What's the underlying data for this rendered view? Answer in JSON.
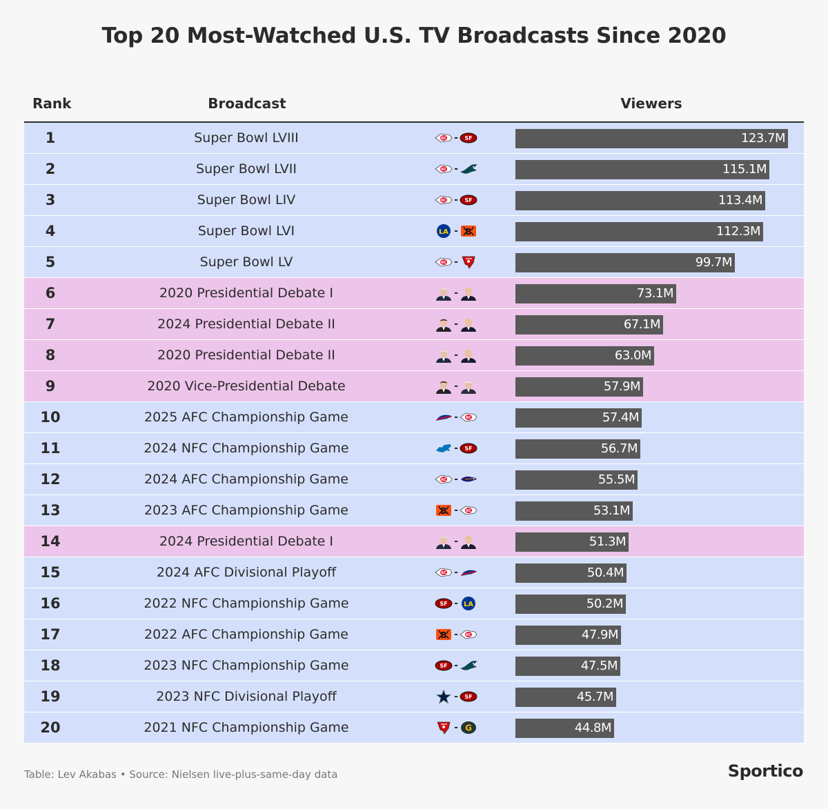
{
  "title": "Top 20 Most-Watched U.S. TV Broadcasts Since 2020",
  "headers": {
    "rank": "Rank",
    "broadcast": "Broadcast",
    "viewers": "Viewers"
  },
  "colors": {
    "nfl_row": "#d4e0fb",
    "politics_row": "#edc4ea",
    "bar": "#595959"
  },
  "footer": {
    "note": "Table: Lev Akabas • Source: Nielsen live-plus-same-day data",
    "brand": "Sportico"
  },
  "chart_data": {
    "type": "bar",
    "orientation": "horizontal",
    "xlim": [
      0,
      123.7
    ],
    "value_unit": "M",
    "rows": [
      {
        "rank": "1",
        "name": "Super Bowl LVIII",
        "value": 123.7,
        "label": "123.7M",
        "category": "nfl",
        "logos": [
          "chiefs-logo",
          "49ers-logo"
        ]
      },
      {
        "rank": "2",
        "name": "Super Bowl LVII",
        "value": 115.1,
        "label": "115.1M",
        "category": "nfl",
        "logos": [
          "chiefs-logo",
          "eagles-logo"
        ]
      },
      {
        "rank": "3",
        "name": "Super Bowl LIV",
        "value": 113.4,
        "label": "113.4M",
        "category": "nfl",
        "logos": [
          "chiefs-logo",
          "49ers-logo"
        ]
      },
      {
        "rank": "4",
        "name": "Super Bowl LVI",
        "value": 112.3,
        "label": "112.3M",
        "category": "nfl",
        "logos": [
          "rams-logo",
          "bengals-logo"
        ]
      },
      {
        "rank": "5",
        "name": "Super Bowl LV",
        "value": 99.7,
        "label": "99.7M",
        "category": "nfl",
        "logos": [
          "chiefs-logo",
          "buccaneers-logo"
        ]
      },
      {
        "rank": "6",
        "name": "2020 Presidential Debate I",
        "value": 73.1,
        "label": "73.1M",
        "category": "politics",
        "logos": [
          "biden-portrait",
          "trump-portrait"
        ]
      },
      {
        "rank": "7",
        "name": "2024 Presidential Debate II",
        "value": 67.1,
        "label": "67.1M",
        "category": "politics",
        "logos": [
          "harris-portrait",
          "trump-portrait"
        ]
      },
      {
        "rank": "8",
        "name": "2020 Presidential Debate II",
        "value": 63.0,
        "label": "63.0M",
        "category": "politics",
        "logos": [
          "biden-portrait",
          "trump-portrait"
        ]
      },
      {
        "rank": "9",
        "name": "2020 Vice-Presidential Debate",
        "value": 57.9,
        "label": "57.9M",
        "category": "politics",
        "logos": [
          "harris-portrait",
          "pence-portrait"
        ]
      },
      {
        "rank": "10",
        "name": "2025 AFC Championship Game",
        "value": 57.4,
        "label": "57.4M",
        "category": "nfl",
        "logos": [
          "bills-logo",
          "chiefs-logo"
        ]
      },
      {
        "rank": "11",
        "name": "2024 NFC Championship Game",
        "value": 56.7,
        "label": "56.7M",
        "category": "nfl",
        "logos": [
          "lions-logo",
          "49ers-logo"
        ]
      },
      {
        "rank": "12",
        "name": "2024 AFC Championship Game",
        "value": 55.5,
        "label": "55.5M",
        "category": "nfl",
        "logos": [
          "chiefs-logo",
          "ravens-logo"
        ]
      },
      {
        "rank": "13",
        "name": "2023 AFC Championship Game",
        "value": 53.1,
        "label": "53.1M",
        "category": "nfl",
        "logos": [
          "bengals-logo",
          "chiefs-logo"
        ]
      },
      {
        "rank": "14",
        "name": "2024 Presidential Debate I",
        "value": 51.3,
        "label": "51.3M",
        "category": "politics",
        "logos": [
          "biden-portrait",
          "trump-portrait"
        ]
      },
      {
        "rank": "15",
        "name": "2024 AFC Divisional Playoff",
        "value": 50.4,
        "label": "50.4M",
        "category": "nfl",
        "logos": [
          "chiefs-logo",
          "bills-logo"
        ]
      },
      {
        "rank": "16",
        "name": "2022 NFC Championship Game",
        "value": 50.2,
        "label": "50.2M",
        "category": "nfl",
        "logos": [
          "49ers-logo",
          "rams-logo"
        ]
      },
      {
        "rank": "17",
        "name": "2022 AFC Championship Game",
        "value": 47.9,
        "label": "47.9M",
        "category": "nfl",
        "logos": [
          "bengals-logo",
          "chiefs-logo"
        ]
      },
      {
        "rank": "18",
        "name": "2023 NFC Championship Game",
        "value": 47.5,
        "label": "47.5M",
        "category": "nfl",
        "logos": [
          "49ers-logo",
          "eagles-logo"
        ]
      },
      {
        "rank": "19",
        "name": "2023 NFC Divisional Playoff",
        "value": 45.7,
        "label": "45.7M",
        "category": "nfl",
        "logos": [
          "cowboys-logo",
          "49ers-logo"
        ]
      },
      {
        "rank": "20",
        "name": "2021 NFC Championship Game",
        "value": 44.8,
        "label": "44.8M",
        "category": "nfl",
        "logos": [
          "buccaneers-logo",
          "packers-logo"
        ]
      }
    ]
  }
}
